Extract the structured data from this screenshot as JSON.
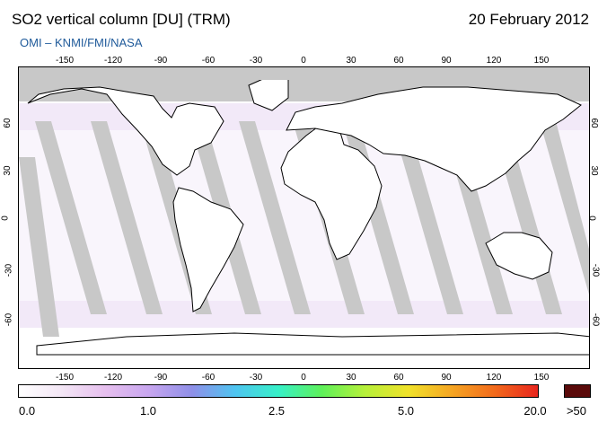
{
  "header": {
    "title": "SO2 vertical column [DU] (TRM)",
    "date": "20 February 2012",
    "credit": "OMI  –  KNMI/FMI/NASA"
  },
  "axes": {
    "lon_ticks": [
      "-150",
      "-120",
      "-90",
      "-60",
      "-30",
      "0",
      "30",
      "60",
      "90",
      "120",
      "150"
    ],
    "lat_ticks": [
      "60",
      "30",
      "0",
      "-30",
      "-60"
    ]
  },
  "colorbar": {
    "labels": [
      "0.0",
      "1.0",
      "2.5",
      "5.0",
      "20.0"
    ],
    "over_label": ">50",
    "colors": [
      "#ffffff",
      "#f3e6f5",
      "#e6bfee",
      "#c8a6ef",
      "#8f8fe8",
      "#4fc4f0",
      "#37f0c8",
      "#5ef05a",
      "#b6f03a",
      "#f0e22a",
      "#f5a623",
      "#f26a1c",
      "#e8261e",
      "#5a0a0a"
    ]
  },
  "map": {
    "projection": "equirectangular",
    "ocean_color": "#ffffff",
    "nodata_color": "#c8c8c8",
    "coast_color": "#000000"
  }
}
